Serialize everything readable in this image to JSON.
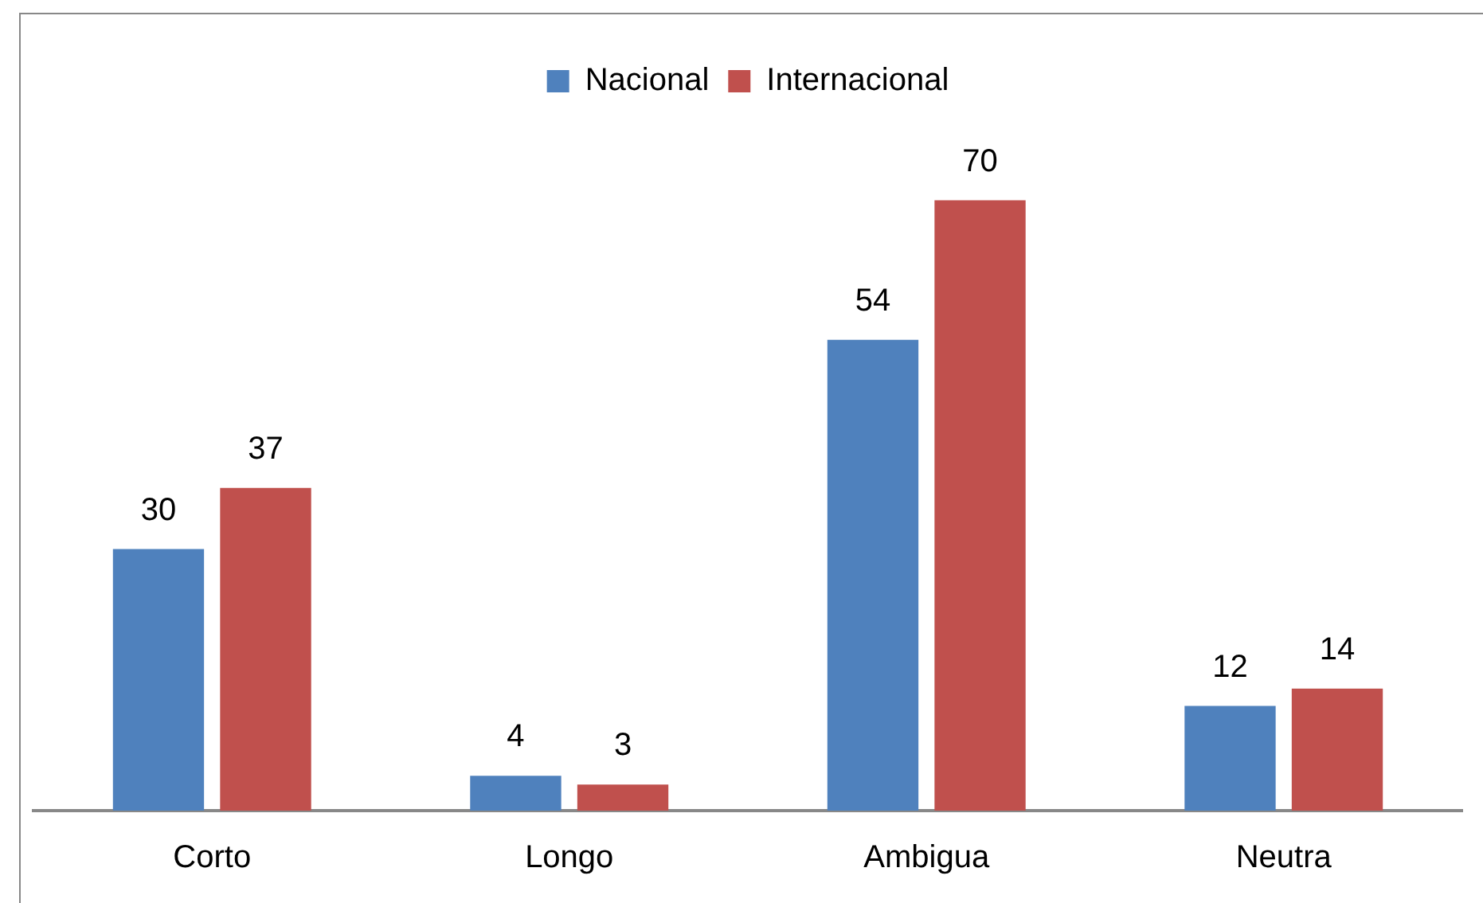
{
  "chart_data": {
    "type": "bar",
    "categories": [
      "Corto",
      "Longo",
      "Ambigua",
      "Neutra"
    ],
    "series": [
      {
        "name": "Nacional",
        "color": "#4f81bd",
        "values": [
          30,
          4,
          54,
          12
        ]
      },
      {
        "name": "Internacional",
        "color": "#c0504d",
        "values": [
          37,
          3,
          70,
          14
        ]
      }
    ],
    "data_labels": true,
    "legend": "top",
    "grid": false
  }
}
